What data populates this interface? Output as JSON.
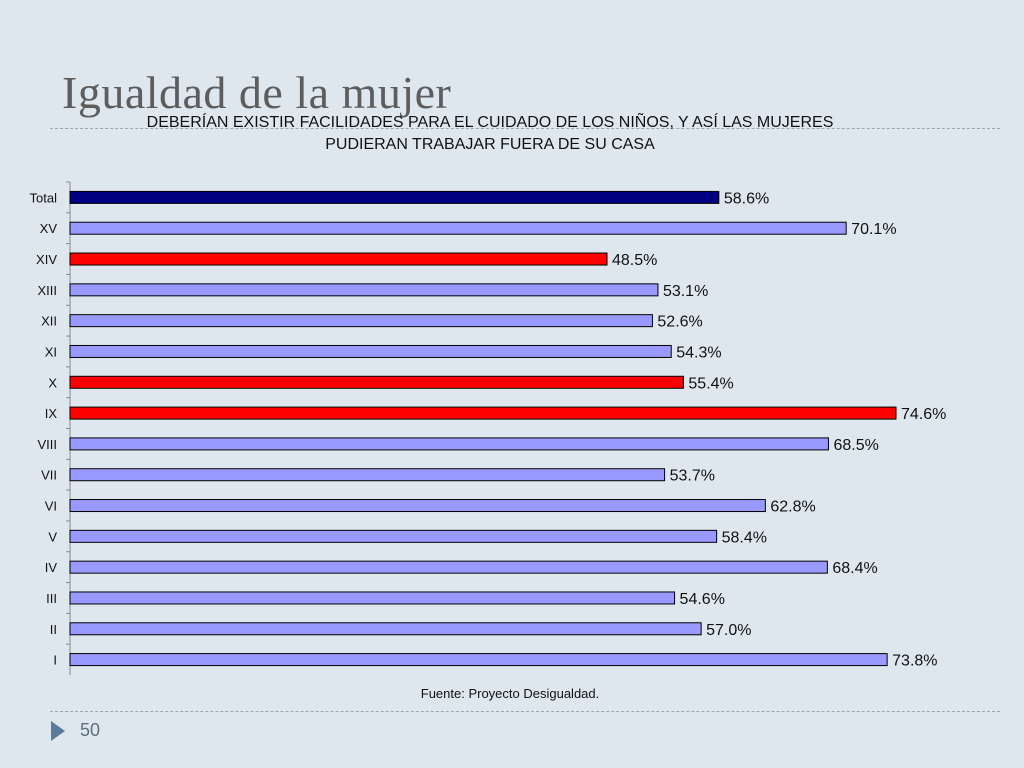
{
  "slide": {
    "title": "Igualdad de la mujer",
    "page_number": "50",
    "source_note": "Fuente: Proyecto Desigualdad."
  },
  "colors": {
    "background": "#dfe7ee",
    "total_bar": "#000080",
    "default_bar": "#9999ff",
    "highlight_bar": "#ff0000",
    "bar_border": "#000000",
    "accent_arrow": "#5b7c99"
  },
  "chart_data": {
    "type": "bar",
    "orientation": "horizontal",
    "title": "DEBERÍAN EXISTIR FACILIDADES PARA EL CUIDADO DE LOS NIÑOS, Y ASÍ LAS MUJERES PUDIERAN TRABAJAR FUERA DE SU CASA",
    "xlabel": "",
    "ylabel": "",
    "xlim": [
      0,
      80
    ],
    "grid": false,
    "legend": "none",
    "categories": [
      "Total",
      "XV",
      "XIV",
      "XIII",
      "XII",
      "XI",
      "X",
      "IX",
      "VIII",
      "VII",
      "VI",
      "V",
      "IV",
      "III",
      "II",
      "I"
    ],
    "values": [
      58.6,
      70.1,
      48.5,
      53.1,
      52.6,
      54.3,
      55.4,
      74.6,
      68.5,
      53.7,
      62.8,
      58.4,
      68.4,
      54.6,
      57.0,
      73.8
    ],
    "labels": [
      "58.6%",
      "70.1%",
      "48.5%",
      "53.1%",
      "52.6%",
      "54.3%",
      "55.4%",
      "74.6%",
      "68.5%",
      "53.7%",
      "62.8%",
      "58.4%",
      "68.4%",
      "54.6%",
      "57.0%",
      "73.8%"
    ],
    "bar_colors": [
      "#000080",
      "#9999ff",
      "#ff0000",
      "#9999ff",
      "#9999ff",
      "#9999ff",
      "#ff0000",
      "#ff0000",
      "#9999ff",
      "#9999ff",
      "#9999ff",
      "#9999ff",
      "#9999ff",
      "#9999ff",
      "#9999ff",
      "#9999ff"
    ]
  }
}
